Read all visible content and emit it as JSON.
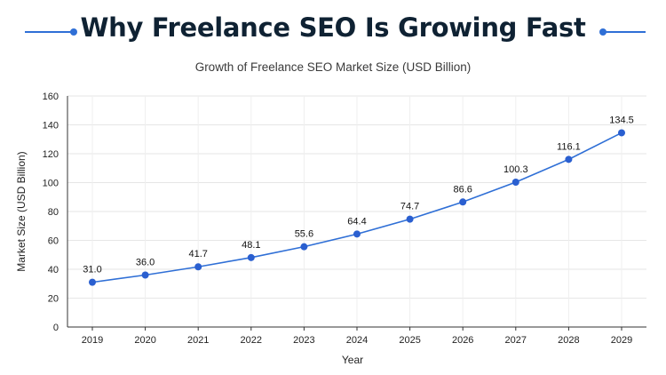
{
  "header": {
    "title": "Why Freelance SEO Is Growing Fast",
    "accent_color": "#2f6fd6"
  },
  "chart_data": {
    "type": "line",
    "title": "Growth of Freelance SEO Market Size (USD Billion)",
    "xlabel": "Year",
    "ylabel": "Market Size (USD Billion)",
    "categories": [
      "2019",
      "2020",
      "2021",
      "2022",
      "2023",
      "2024",
      "2025",
      "2026",
      "2027",
      "2028",
      "2029"
    ],
    "values": [
      31.0,
      36.0,
      41.7,
      48.1,
      55.6,
      64.4,
      74.7,
      86.6,
      100.3,
      116.1,
      134.5
    ],
    "data_labels": [
      "31.0",
      "36.0",
      "41.7",
      "48.1",
      "55.6",
      "64.4",
      "74.7",
      "86.6",
      "100.3",
      "116.1",
      "134.5"
    ],
    "ylim": [
      0,
      160
    ],
    "yticks": [
      0,
      20,
      40,
      60,
      80,
      100,
      120,
      140,
      160
    ],
    "grid": true,
    "line_color": "#2f6fd6",
    "marker_color": "#2a5fd0"
  }
}
